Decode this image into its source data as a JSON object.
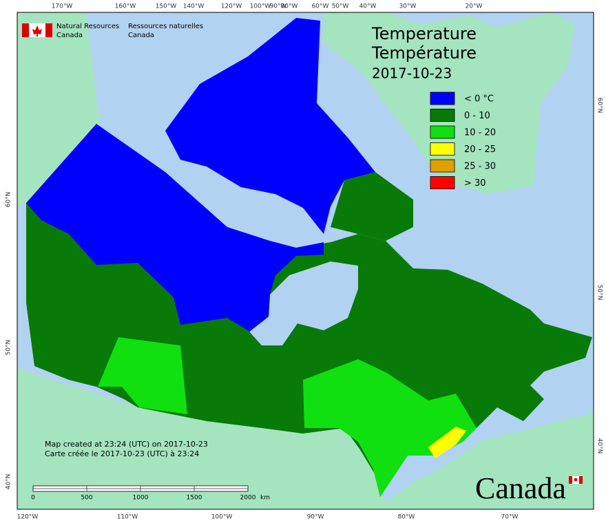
{
  "agency": {
    "en": [
      "Natural Resources",
      "Canada"
    ],
    "fr": [
      "Ressources naturelles",
      "Canada"
    ]
  },
  "title": {
    "en": "Temperature",
    "fr": "Température",
    "date": "2017-10-23"
  },
  "legend": [
    {
      "label": "< 0 °C",
      "color": "#0000ff"
    },
    {
      "label": "0 - 10",
      "color": "#087a08"
    },
    {
      "label": "10 - 20",
      "color": "#10e010"
    },
    {
      "label": "20 - 25",
      "color": "#ffff00"
    },
    {
      "label": "25 - 30",
      "color": "#e0a000"
    },
    {
      "label": "> 30",
      "color": "#ff0000"
    }
  ],
  "graticule": {
    "top": [
      "170°W",
      "160°W",
      "150°W",
      "140°W",
      "120°W",
      "100°W",
      "90°W",
      "80°W",
      "60°W",
      "50°W",
      "40°W",
      "30°W",
      "20°W"
    ],
    "bottom": [
      "120°W",
      "110°W",
      "100°W",
      "90°W",
      "80°W",
      "70°W"
    ],
    "left": [
      "60°N",
      "50°N",
      "40°N"
    ],
    "right": [
      "60°N",
      "50°N",
      "40°N"
    ]
  },
  "credits": [
    "Map created at 23:24 (UTC) on 2017-10-23",
    "Carte créée le 2017-10-23 (UTC) à 23:24"
  ],
  "scale_bar": {
    "labels": [
      "0",
      "500",
      "1000",
      "1500",
      "2000"
    ],
    "unit": "km"
  },
  "wordmark": "Canada"
}
